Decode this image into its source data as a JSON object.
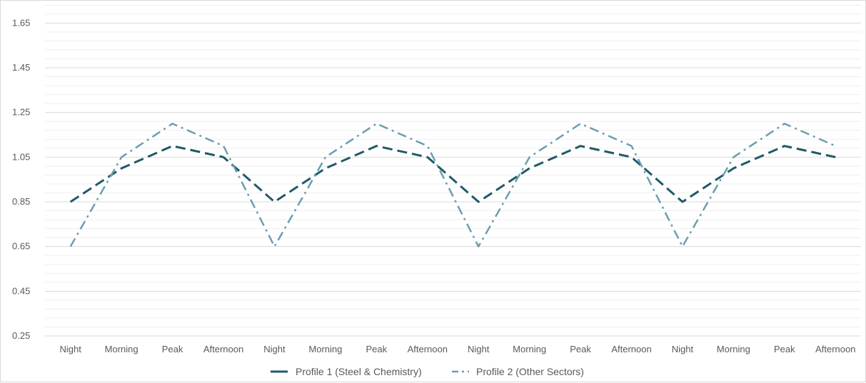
{
  "chart_data": {
    "type": "line",
    "title": "",
    "xlabel": "",
    "ylabel": "",
    "categories": [
      "Night",
      "Morning",
      "Peak",
      "Afternoon",
      "Night",
      "Morning",
      "Peak",
      "Afternoon",
      "Night",
      "Morning",
      "Peak",
      "Afternoon",
      "Night",
      "Morning",
      "Peak",
      "Afternoon"
    ],
    "yticks": [
      "0.25",
      "0.45",
      "0.65",
      "0.85",
      "1.05",
      "1.25",
      "1.45",
      "1.65"
    ],
    "ylim": [
      0.25,
      1.75
    ],
    "grid": true,
    "legend_position": "bottom",
    "series": [
      {
        "name": "Profile 1 (Steel & Chemistry)",
        "color": "#1f5a68",
        "line_style": "dashed",
        "values": [
          0.85,
          1.0,
          1.1,
          1.05,
          0.85,
          1.0,
          1.1,
          1.05,
          0.85,
          1.0,
          1.1,
          1.05,
          0.85,
          1.0,
          1.1,
          1.05
        ]
      },
      {
        "name": "Profile 2 (Other Sectors)",
        "color": "#6a9fad",
        "line_style": "dash-dot",
        "values": [
          0.65,
          1.05,
          1.2,
          1.1,
          0.65,
          1.05,
          1.2,
          1.1,
          0.65,
          1.05,
          1.2,
          1.1,
          0.65,
          1.05,
          1.2,
          1.1
        ]
      }
    ]
  }
}
